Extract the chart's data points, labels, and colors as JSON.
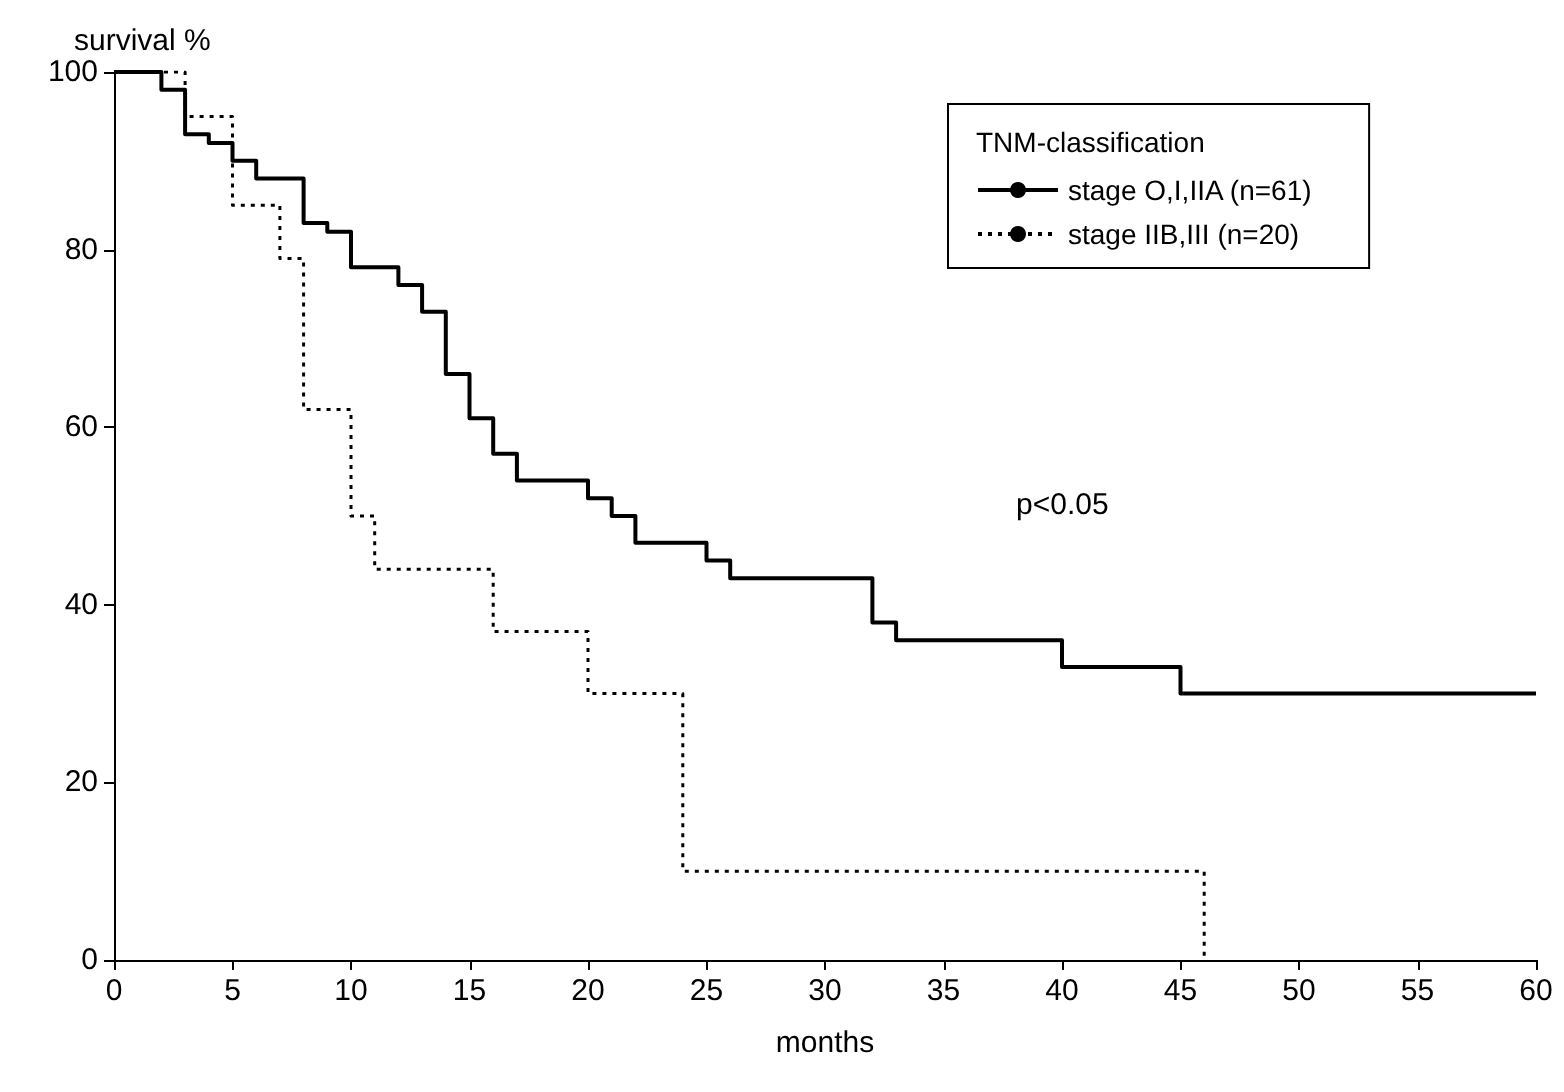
{
  "chart_data": {
    "type": "step",
    "xlabel": "months",
    "ylabel": "survival %",
    "legend_title": "TNM-classification",
    "legend": "top right",
    "grid": false,
    "marker": "none",
    "xlim": [
      0,
      60
    ],
    "xticks": [
      0,
      5,
      10,
      15,
      20,
      25,
      30,
      35,
      40,
      45,
      50,
      55,
      60
    ],
    "ylim": [
      0,
      100
    ],
    "yticks": [
      0,
      20,
      40,
      60,
      80,
      100
    ],
    "annotations": [
      "p<0.05"
    ],
    "series": [
      {
        "name": "stage O,I,IIA (n=61)",
        "color": "#000000",
        "line_style": "solid",
        "x": [
          0,
          2,
          3,
          4,
          5,
          6,
          8,
          9,
          10,
          12,
          13,
          14,
          15,
          16,
          17,
          20,
          21,
          22,
          25,
          26,
          32,
          33,
          40,
          45,
          60
        ],
        "values": [
          100,
          98,
          93,
          92,
          90,
          88,
          83,
          82,
          78,
          76,
          73,
          66,
          61,
          57,
          54,
          52,
          50,
          47,
          45,
          43,
          38,
          36,
          33,
          30,
          30
        ]
      },
      {
        "name": "stage IIB,III (n=20)",
        "color": "#000000",
        "line_style": "dotted",
        "x": [
          0,
          3,
          5,
          7,
          8,
          10,
          11,
          16,
          20,
          24,
          46
        ],
        "values": [
          100,
          95,
          85,
          79,
          62,
          50,
          44,
          37,
          30,
          10,
          0
        ]
      }
    ]
  }
}
